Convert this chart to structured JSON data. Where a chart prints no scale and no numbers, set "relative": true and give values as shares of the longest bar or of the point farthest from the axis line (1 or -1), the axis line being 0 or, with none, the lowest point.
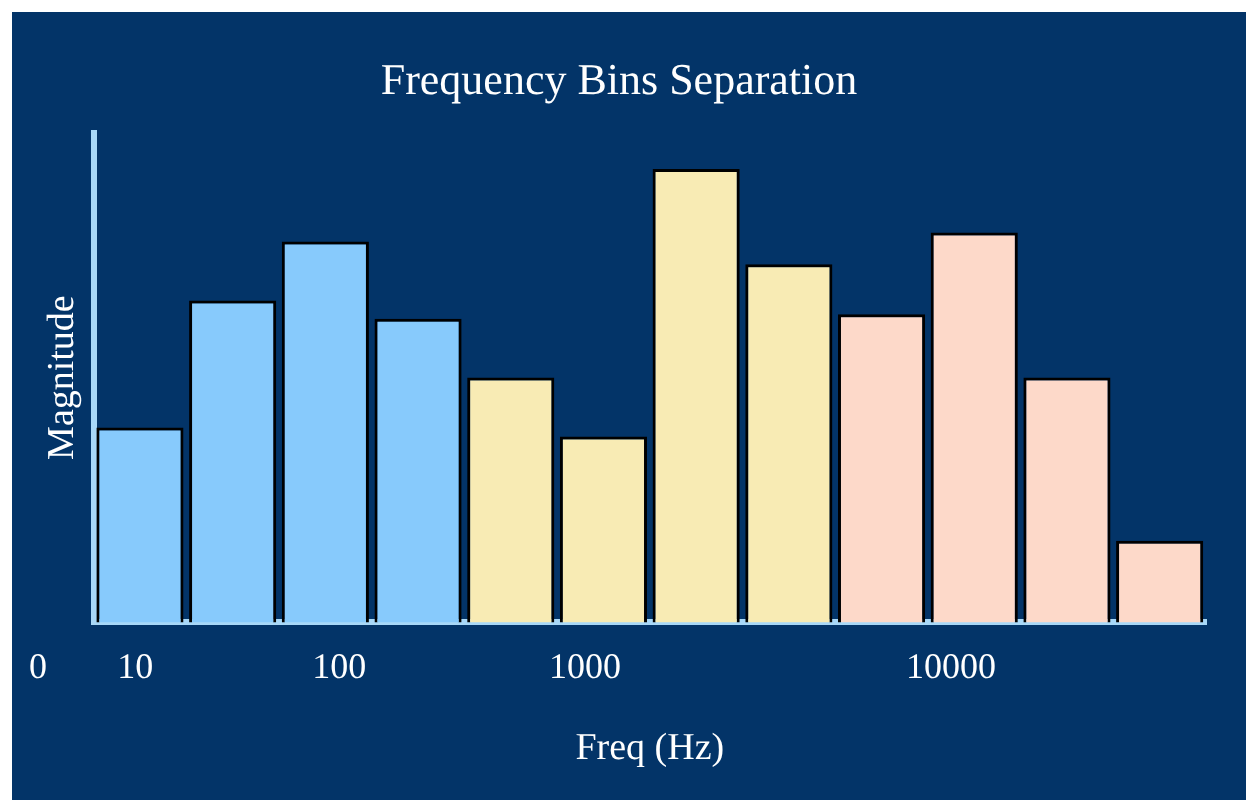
{
  "chart_data": {
    "type": "bar",
    "title": "Frequency Bins Separation",
    "xlabel": "Freq (Hz)",
    "ylabel": "Magnitude",
    "relative": true,
    "categories": [
      null,
      null,
      null,
      null,
      null,
      null,
      null,
      null,
      null,
      null,
      null,
      null
    ],
    "values": [
      0.43,
      0.71,
      0.84,
      0.67,
      0.54,
      0.41,
      1,
      0.79,
      0.68,
      0.86,
      0.54,
      0.18
    ],
    "colors": [
      "#87cafc",
      "#87cafc",
      "#87cafc",
      "#87cafc",
      "#f8ebb4",
      "#f8ebb4",
      "#f8ebb4",
      "#f8ebb4",
      "#fdd9c9",
      "#fdd9c9",
      "#fdd9c9",
      "#fdd9c9"
    ],
    "annotations": [
      "0",
      "10",
      "100",
      "1000",
      "10000"
    ],
    "legend": false,
    "grid": false
  }
}
